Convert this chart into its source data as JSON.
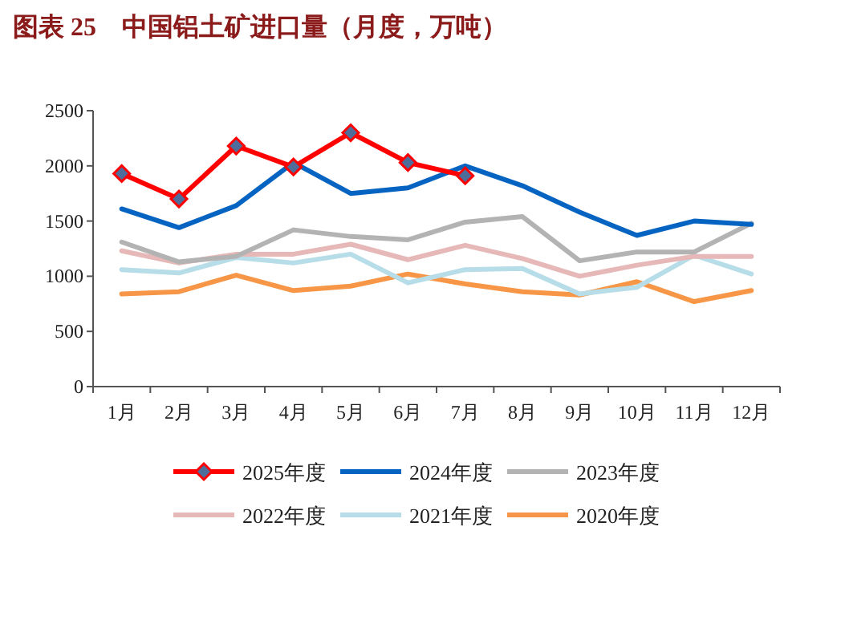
{
  "chart_data": {
    "type": "line",
    "title": "图表 25　中国铝土矿进口量（月度，万吨）",
    "categories": [
      "1月",
      "2月",
      "3月",
      "4月",
      "5月",
      "6月",
      "7月",
      "8月",
      "9月",
      "10月",
      "11月",
      "12月"
    ],
    "series": [
      {
        "name": "2025年度",
        "color": "#ff0000",
        "marker": "diamond",
        "values": [
          1930,
          1700,
          2180,
          1990,
          2300,
          2030,
          1910,
          null,
          null,
          null,
          null,
          null
        ]
      },
      {
        "name": "2024年度",
        "color": "#0563c1",
        "values": [
          1610,
          1440,
          1640,
          2030,
          1750,
          1800,
          2000,
          1820,
          1580,
          1370,
          1500,
          1470
        ]
      },
      {
        "name": "2023年度",
        "color": "#b3b3b3",
        "values": [
          1310,
          1130,
          1180,
          1420,
          1360,
          1330,
          1490,
          1540,
          1140,
          1220,
          1220,
          1480
        ]
      },
      {
        "name": "2022年度",
        "color": "#e6b9b8",
        "values": [
          1230,
          1120,
          1200,
          1200,
          1290,
          1150,
          1280,
          1160,
          1000,
          1100,
          1180,
          1180
        ]
      },
      {
        "name": "2021年度",
        "color": "#b7dde8",
        "values": [
          1060,
          1030,
          1170,
          1120,
          1200,
          940,
          1060,
          1070,
          840,
          900,
          1190,
          1020
        ]
      },
      {
        "name": "2020年度",
        "color": "#f79646",
        "values": [
          840,
          860,
          1010,
          870,
          910,
          1020,
          930,
          860,
          830,
          950,
          770,
          870
        ]
      }
    ],
    "ylim": [
      0,
      2500
    ],
    "yticks": [
      0,
      500,
      1000,
      1500,
      2000,
      2500
    ],
    "grid": false,
    "legend": "bottom"
  }
}
